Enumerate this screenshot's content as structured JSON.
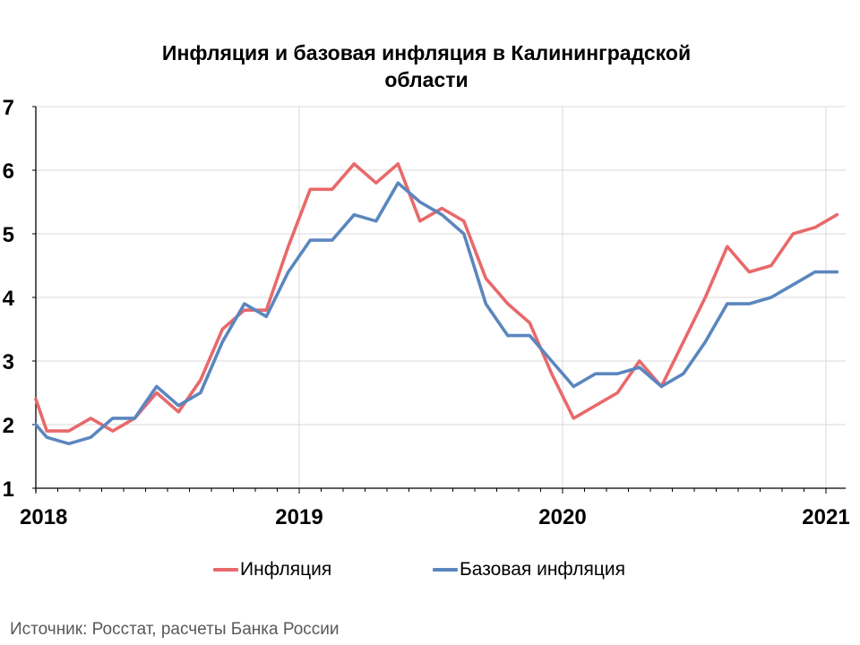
{
  "chart_data": {
    "type": "line",
    "title": [
      "Инфляция и базовая инфляция в Калининградской",
      "области"
    ],
    "source": "Источник: Росстат, расчеты Банка России",
    "y_ticks": [
      "1",
      "2",
      "3",
      "4",
      "5",
      "6",
      "7"
    ],
    "ylim": [
      1,
      7
    ],
    "x_ticks": [
      "2018",
      "2019",
      "2020",
      "2021"
    ],
    "x_tick_positions": [
      0,
      12,
      24,
      36
    ],
    "xlim": [
      0,
      36
    ],
    "grid": true,
    "legend_position": "bottom",
    "x": [
      0,
      0.5,
      1.5,
      2.5,
      3.5,
      4.5,
      5.5,
      6.5,
      7.5,
      8.5,
      9.5,
      10.5,
      11.5,
      12.5,
      13.5,
      14.5,
      15.5,
      16.5,
      17.5,
      18.5,
      19.5,
      20.5,
      21.5,
      22.5,
      23.5,
      24.5,
      25.5,
      26.5,
      27.5,
      28.5,
      29.5,
      30.5,
      31.5,
      32.5,
      33.5,
      34.5,
      35.5,
      36.5
    ],
    "series": [
      {
        "name": "Инфляция",
        "color": "#e8696b",
        "values": [
          2.4,
          1.9,
          1.9,
          2.1,
          1.9,
          2.1,
          2.5,
          2.2,
          2.7,
          3.5,
          3.8,
          3.8,
          4.8,
          5.7,
          5.7,
          6.1,
          5.8,
          6.1,
          5.2,
          5.4,
          5.2,
          4.3,
          3.9,
          3.6,
          2.8,
          2.1,
          2.3,
          2.5,
          3.0,
          2.6,
          3.3,
          4.0,
          4.8,
          4.4,
          4.5,
          5.0,
          5.1,
          5.3
        ]
      },
      {
        "name": "Базовая инфляция",
        "color": "#5b86bf",
        "values": [
          2.0,
          1.8,
          1.7,
          1.8,
          2.1,
          2.1,
          2.6,
          2.3,
          2.5,
          3.3,
          3.9,
          3.7,
          4.4,
          4.9,
          4.9,
          5.3,
          5.2,
          5.8,
          5.5,
          5.3,
          5.0,
          3.9,
          3.4,
          3.4,
          3.0,
          2.6,
          2.8,
          2.8,
          2.9,
          2.6,
          2.8,
          3.3,
          3.9,
          3.9,
          4.0,
          4.2,
          4.4,
          4.4
        ]
      }
    ]
  }
}
